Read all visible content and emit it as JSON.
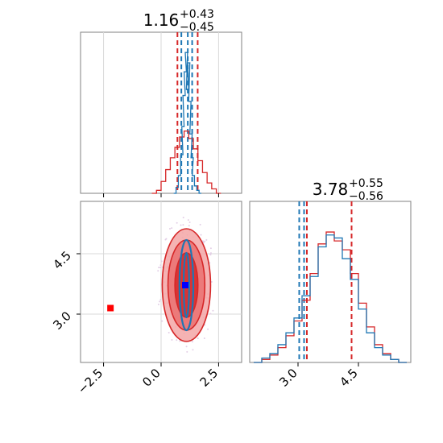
{
  "chart_data": [
    {
      "panel": "top-left",
      "type": "line",
      "title_base": "1.16",
      "title_sup": "+0.43",
      "title_sub": "−0.45",
      "xlim": [
        -3.5,
        3.5
      ],
      "xticks": [
        -2.5,
        0.0,
        2.5
      ],
      "grid": true,
      "series": [
        {
          "color": "#d62728",
          "x": [
            -0.3,
            -0.1,
            0.1,
            0.3,
            0.5,
            0.7,
            0.9,
            1.1,
            1.3,
            1.5,
            1.7,
            1.9,
            2.1,
            2.3,
            2.5
          ],
          "values": [
            0.0,
            0.02,
            0.08,
            0.16,
            0.24,
            0.31,
            0.38,
            0.42,
            0.37,
            0.3,
            0.22,
            0.14,
            0.07,
            0.03,
            0.0
          ]
        },
        {
          "color": "#1f77b4",
          "x": [
            0.6,
            0.7,
            0.8,
            0.9,
            0.95,
            1.0,
            1.05,
            1.1,
            1.15,
            1.2,
            1.25,
            1.3,
            1.35,
            1.4,
            1.5,
            1.6,
            1.7
          ],
          "values": [
            0.0,
            0.04,
            0.12,
            0.26,
            0.45,
            0.66,
            0.82,
            0.95,
            0.7,
            0.88,
            0.62,
            0.4,
            0.24,
            0.12,
            0.05,
            0.02,
            0.0
          ]
        }
      ],
      "vlines": [
        {
          "x": 0.71,
          "color": "#d62728"
        },
        {
          "x": 1.59,
          "color": "#d62728"
        },
        {
          "x": 0.88,
          "color": "#1f77b4"
        },
        {
          "x": 1.35,
          "color": "#1f77b4"
        },
        {
          "x": 1.16,
          "color": "#1f77b4"
        }
      ]
    },
    {
      "panel": "bottom-left",
      "type": "scatter",
      "xlim": [
        -3.5,
        3.5
      ],
      "ylim": [
        1.8,
        5.8
      ],
      "xticks": [
        -2.5,
        0.0,
        2.5
      ],
      "yticks": [
        3.0,
        4.5
      ],
      "grid": true,
      "markers": [
        {
          "x": -2.2,
          "y": 3.15,
          "color": "#ff0000"
        },
        {
          "x": 1.05,
          "y": 3.72,
          "color": "#0000ff"
        }
      ],
      "contours": {
        "center": [
          1.1,
          3.72
        ],
        "red_radii_x": [
          1.05,
          0.8,
          0.5
        ],
        "red_radii_y": [
          1.4,
          1.12,
          0.8
        ],
        "blue_radii_x": [
          0.3,
          0.12
        ],
        "blue_radii_y": [
          1.12,
          0.8
        ]
      }
    },
    {
      "panel": "bottom-right",
      "type": "line",
      "title_base": "3.78",
      "title_sup": "+0.55",
      "title_sub": "−0.56",
      "xlim": [
        1.8,
        5.8
      ],
      "xticks": [
        3.0,
        4.5
      ],
      "grid": false,
      "series": [
        {
          "color": "#d62728",
          "x": [
            2.0,
            2.2,
            2.4,
            2.6,
            2.8,
            3.0,
            3.2,
            3.4,
            3.6,
            3.8,
            4.0,
            4.2,
            4.4,
            4.6,
            4.8,
            5.0,
            5.2,
            5.4,
            5.6
          ],
          "values": [
            0.0,
            0.02,
            0.05,
            0.1,
            0.18,
            0.28,
            0.42,
            0.6,
            0.8,
            0.88,
            0.82,
            0.76,
            0.6,
            0.4,
            0.24,
            0.12,
            0.06,
            0.02,
            0.0
          ]
        },
        {
          "color": "#1f77b4",
          "x": [
            2.0,
            2.2,
            2.4,
            2.6,
            2.8,
            3.0,
            3.2,
            3.4,
            3.6,
            3.8,
            4.0,
            4.2,
            4.4,
            4.6,
            4.8,
            5.0,
            5.2,
            5.4,
            5.6
          ],
          "values": [
            0.0,
            0.03,
            0.06,
            0.12,
            0.2,
            0.3,
            0.45,
            0.58,
            0.78,
            0.86,
            0.84,
            0.7,
            0.56,
            0.36,
            0.2,
            0.1,
            0.05,
            0.02,
            0.0
          ]
        }
      ],
      "vlines": [
        {
          "x": 3.03,
          "color": "#1f77b4"
        },
        {
          "x": 3.15,
          "color": "#1f77b4"
        },
        {
          "x": 3.22,
          "color": "#d62728"
        },
        {
          "x": 4.33,
          "color": "#d62728"
        }
      ]
    }
  ]
}
